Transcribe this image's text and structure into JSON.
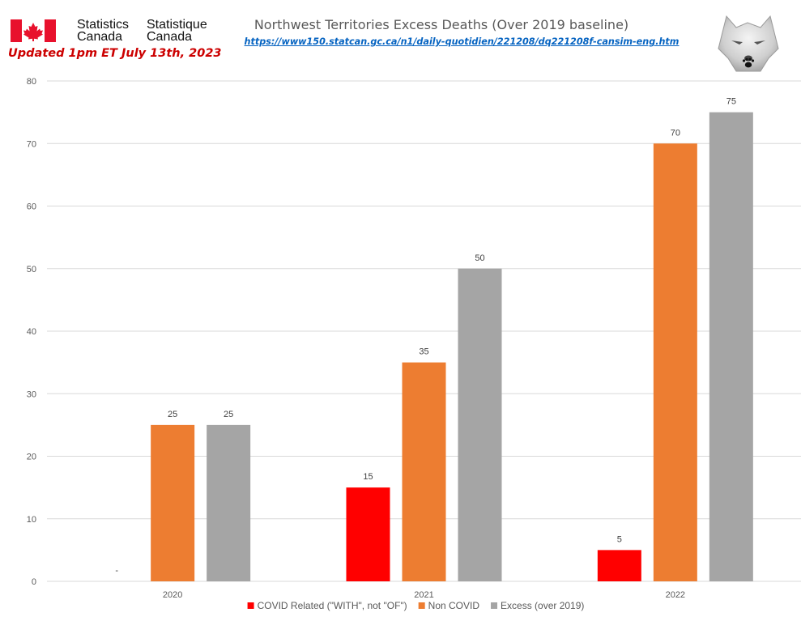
{
  "header": {
    "agency_en_line1": "Statistics",
    "agency_en_line2": "Canada",
    "agency_fr_line1": "Statistique",
    "agency_fr_line2": "Canada",
    "updated_note": "Updated 1pm ET July 13th, 2023",
    "source_url": "https://www150.statcan.gc.ca/n1/daily-quotidien/221208/dq221208f-cansim-eng.htm",
    "logo_icon": "wolf-paw-logo",
    "flag_icon": "canada-flag-icon"
  },
  "colors": {
    "covid": "#ff0000",
    "non_covid": "#ed7d31",
    "excess": "#a5a5a5",
    "flag_red": "#e8112d",
    "grid": "#d9d9d9",
    "axis_text": "#595959"
  },
  "chart_data": {
    "type": "bar",
    "title": "Northwest Territories Excess Deaths (Over 2019 baseline)",
    "categories": [
      "2020",
      "2021",
      "2022"
    ],
    "series": [
      {
        "name": "COVID Related (\"WITH\", not \"OF\")",
        "values": [
          0,
          15,
          5
        ],
        "labels": [
          "-",
          "15",
          "5"
        ]
      },
      {
        "name": "Non COVID",
        "values": [
          25,
          35,
          70
        ],
        "labels": [
          "25",
          "35",
          "70"
        ]
      },
      {
        "name": "Excess (over 2019)",
        "values": [
          25,
          50,
          75
        ],
        "labels": [
          "25",
          "50",
          "75"
        ]
      }
    ],
    "xlabel": "",
    "ylabel": "",
    "ylim": [
      0,
      80
    ],
    "yticks": [
      0,
      10,
      20,
      30,
      40,
      50,
      60,
      70,
      80
    ],
    "grid": true,
    "legend": "bottom"
  }
}
